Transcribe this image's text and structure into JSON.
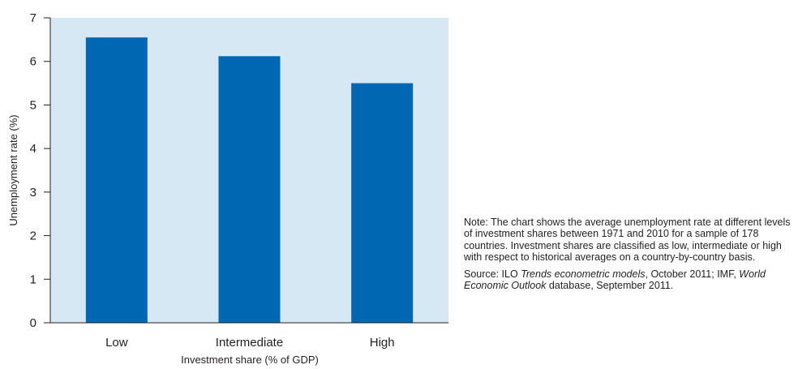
{
  "chart_data": {
    "type": "bar",
    "categories": [
      "Low",
      "Intermediate",
      "High"
    ],
    "values": [
      6.55,
      6.12,
      5.5
    ],
    "xlabel": "Investment share (% of GDP)",
    "ylabel": "Unemployment rate (%)",
    "ylim": [
      0,
      7
    ],
    "yticks": [
      "0",
      "1",
      "2",
      "3",
      "4",
      "5",
      "6",
      "7"
    ],
    "grid": false,
    "colors": {
      "bar": "#0068b3",
      "plot_background": "#d6e8f4"
    }
  },
  "note": {
    "text": "Note: The chart shows the average unemployment rate at different levels of investment shares between 1971 and 2010 for a sample of 178 countries. Investment shares are classified as low, intermediate or high with respect to historical averages on a country-by-country basis."
  },
  "source": {
    "prefix": "Source: ILO ",
    "title1": "Trends econometric models",
    "middle": ", October 2011; IMF, ",
    "title2": "World Economic Outlook",
    "suffix": " database, September 2011."
  }
}
